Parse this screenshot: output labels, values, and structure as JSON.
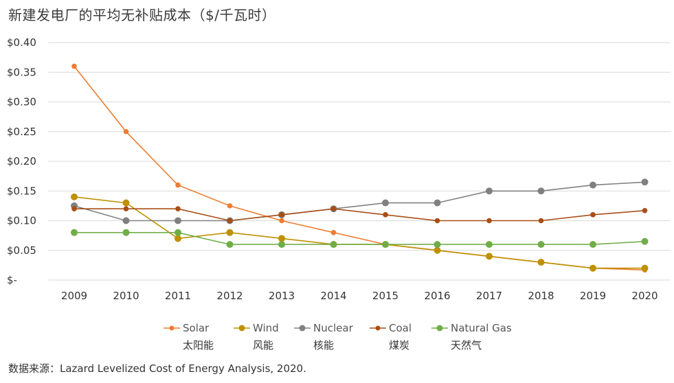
{
  "title": "新建发电厂的平均无补贴成本（$/千瓦时）",
  "source": "数据来源：Lazard Levelized Cost of Energy Analysis, 2020.",
  "chart_data": {
    "type": "line",
    "title": "新建发电厂的平均无补贴成本（$/千瓦时）",
    "xlabel": "",
    "ylabel": "",
    "x": [
      "2009",
      "2010",
      "2011",
      "2012",
      "2013",
      "2014",
      "2015",
      "2016",
      "2017",
      "2018",
      "2019",
      "2020"
    ],
    "ylim": [
      0,
      0.4
    ],
    "yticks": [
      {
        "value": 0.4,
        "label": "$0.40"
      },
      {
        "value": 0.35,
        "label": "$0.35"
      },
      {
        "value": 0.3,
        "label": "$0.30"
      },
      {
        "value": 0.25,
        "label": "$0.25"
      },
      {
        "value": 0.2,
        "label": "$0.20"
      },
      {
        "value": 0.15,
        "label": "$0.15"
      },
      {
        "value": 0.1,
        "label": "$0.10"
      },
      {
        "value": 0.05,
        "label": "$0.05"
      },
      {
        "value": 0.0,
        "label": "$-"
      }
    ],
    "grid": true,
    "legend_position": "bottom",
    "series": [
      {
        "name": "Solar",
        "name_cn": "太阳能",
        "color": "#ED7D31",
        "marker": "small",
        "values": [
          0.36,
          0.25,
          0.16,
          0.125,
          0.1,
          0.08,
          0.06,
          0.05,
          0.04,
          0.03,
          0.02,
          0.017
        ]
      },
      {
        "name": "Wind",
        "name_cn": "风能",
        "color": "#BF9000",
        "marker": "large",
        "values": [
          0.14,
          0.13,
          0.07,
          0.08,
          0.07,
          0.06,
          0.06,
          0.05,
          0.04,
          0.03,
          0.02,
          0.02
        ]
      },
      {
        "name": "Nuclear",
        "name_cn": "核能",
        "color": "#808080",
        "marker": "large",
        "values": [
          0.125,
          0.1,
          0.1,
          0.1,
          0.11,
          0.12,
          0.13,
          0.13,
          0.15,
          0.15,
          0.16,
          0.165
        ]
      },
      {
        "name": "Coal",
        "name_cn": "煤炭",
        "color": "#A84E16",
        "marker": "small",
        "values": [
          0.12,
          0.12,
          0.12,
          0.1,
          0.11,
          0.12,
          0.11,
          0.1,
          0.1,
          0.1,
          0.11,
          0.117
        ]
      },
      {
        "name": "Natural Gas",
        "name_cn": "天然气",
        "color": "#70AD47",
        "marker": "large",
        "values": [
          0.08,
          0.08,
          0.08,
          0.06,
          0.06,
          0.06,
          0.06,
          0.06,
          0.06,
          0.06,
          0.06,
          0.065
        ]
      }
    ]
  }
}
